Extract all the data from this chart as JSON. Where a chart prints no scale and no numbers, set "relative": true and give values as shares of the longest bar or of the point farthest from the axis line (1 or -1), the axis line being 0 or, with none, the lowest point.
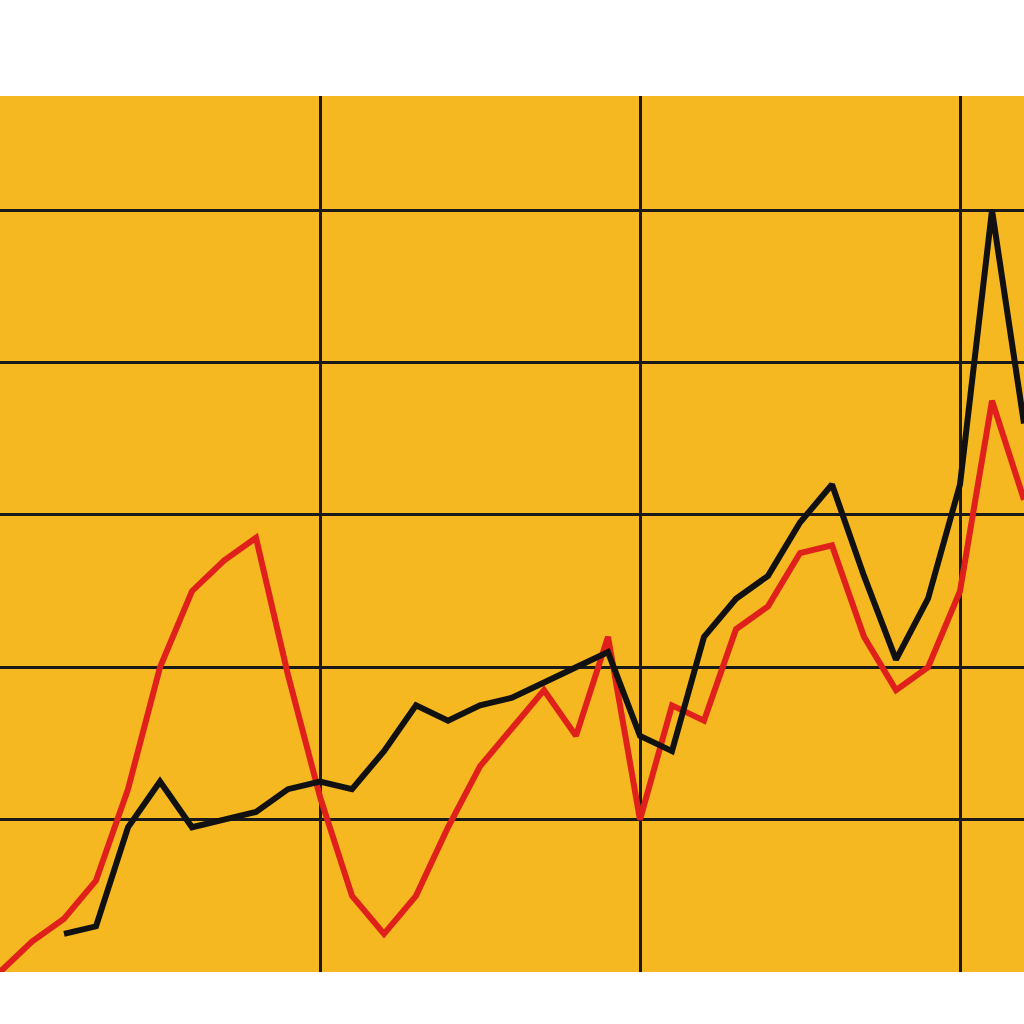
{
  "chart_data": {
    "type": "line",
    "relative": true,
    "grid": true,
    "categories": [
      null,
      null,
      null,
      null,
      null,
      null,
      null,
      null,
      null,
      null,
      null,
      null,
      null,
      null,
      null,
      null,
      null,
      null,
      null,
      null,
      null,
      null,
      null,
      null,
      null,
      null,
      null,
      null,
      null,
      null,
      null,
      null,
      null
    ],
    "series": [
      {
        "color": "#e0201a",
        "values": [
          0,
          0.04,
          0.07,
          0.12,
          0.24,
          0.4,
          0.5,
          0.54,
          0.57,
          0.39,
          0.23,
          0.1,
          0.05,
          0.1,
          0.19,
          0.27,
          0.32,
          0.37,
          0.31,
          0.44,
          0.2,
          0.35,
          0.33,
          0.45,
          0.48,
          0.55,
          0.56,
          0.44,
          0.37,
          0.4,
          0.5,
          0.75,
          0.62
        ]
      },
      {
        "color": "#111111",
        "values": [
          null,
          null,
          0.05,
          0.06,
          0.19,
          0.25,
          0.19,
          0.2,
          0.21,
          0.24,
          0.25,
          0.24,
          0.29,
          0.35,
          0.33,
          0.35,
          0.36,
          0.38,
          0.4,
          0.42,
          0.31,
          0.29,
          0.44,
          0.49,
          0.52,
          0.59,
          0.64,
          0.52,
          0.41,
          0.49,
          0.64,
          1,
          0.72
        ]
      }
    ]
  }
}
